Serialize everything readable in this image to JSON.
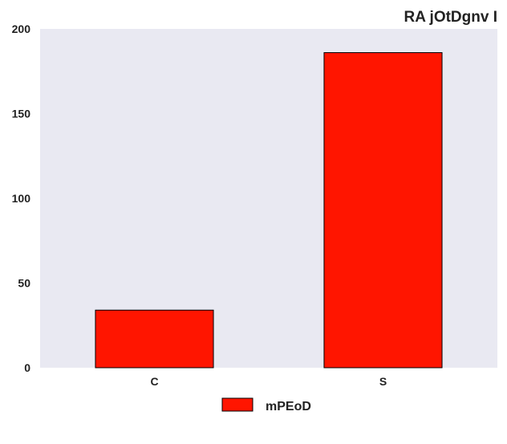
{
  "chart_data": {
    "type": "bar",
    "title": "RA jOtDgnv  I",
    "xlabel": "",
    "ylabel": "",
    "categories": [
      "C",
      "S"
    ],
    "series": [
      {
        "name": "mPEoD",
        "values": [
          34,
          186
        ],
        "color": "#ff1500"
      }
    ],
    "ylim": [
      0,
      200
    ],
    "yticks": [
      0,
      50,
      100,
      150,
      200
    ],
    "grid": false,
    "legend": "bottom-center",
    "background": "#e9e9f2",
    "bar_edge_color": "#000000"
  }
}
